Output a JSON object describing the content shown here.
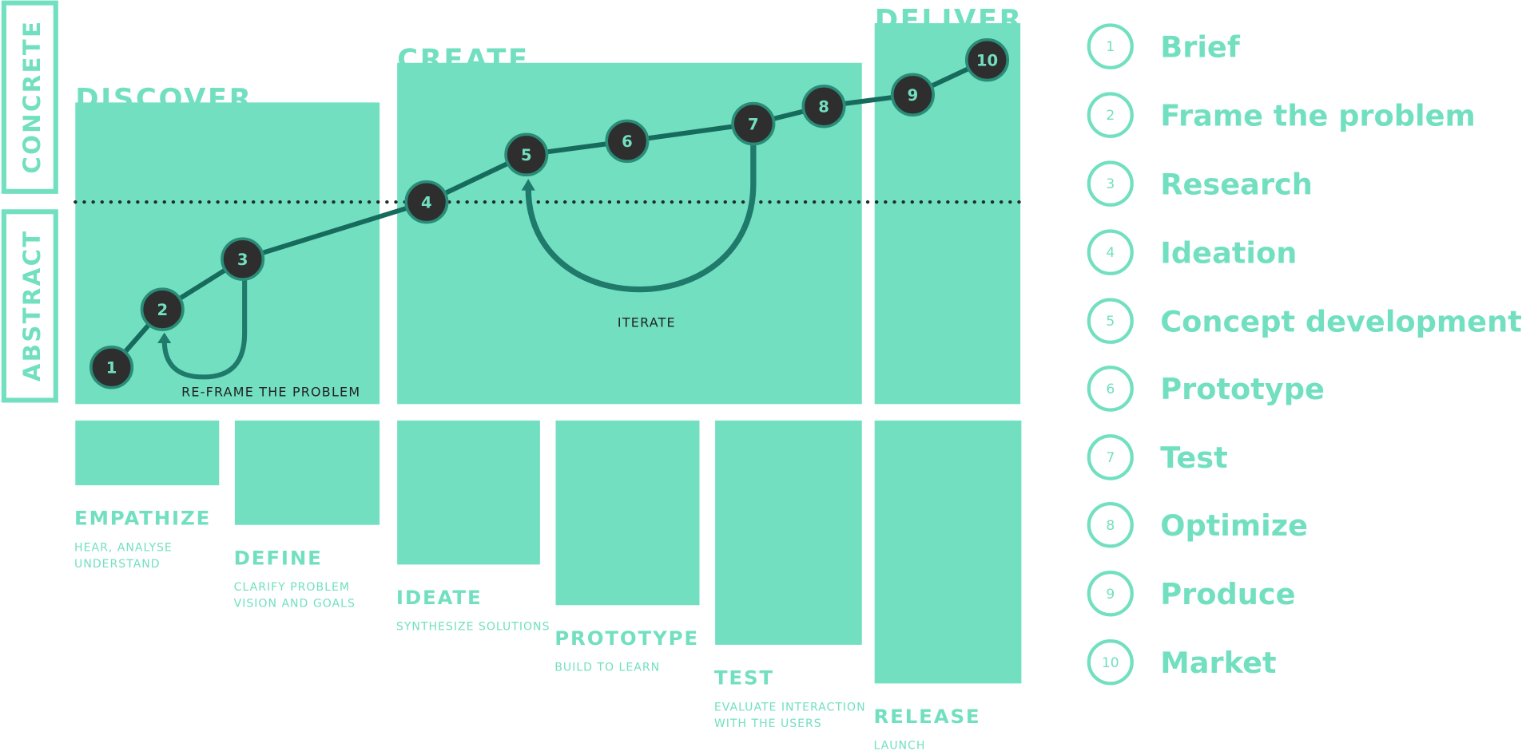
{
  "axis_labels": {
    "concrete": "CONCRETE",
    "abstract": "ABSTRACT"
  },
  "phases": [
    {
      "title": "DISCOVER"
    },
    {
      "title": "CREATE"
    },
    {
      "title": "DELIVER"
    }
  ],
  "nodes": [
    {
      "label": "1"
    },
    {
      "label": "2"
    },
    {
      "label": "3"
    },
    {
      "label": "4"
    },
    {
      "label": "5"
    },
    {
      "label": "6"
    },
    {
      "label": "7"
    },
    {
      "label": "8"
    },
    {
      "label": "9"
    },
    {
      "label": "10"
    }
  ],
  "annotations": {
    "reframe": "RE-FRAME THE PROBLEM",
    "iterate": "ITERATE"
  },
  "stages": [
    {
      "title": "EMPATHIZE",
      "lines": [
        "HEAR, ANALYSE",
        "UNDERSTAND"
      ]
    },
    {
      "title": "DEFINE",
      "lines": [
        "CLARIFY PROBLEM",
        "VISION AND GOALS"
      ]
    },
    {
      "title": "IDEATE",
      "lines": [
        "SYNTHESIZE SOLUTIONS"
      ]
    },
    {
      "title": "PROTOTYPE",
      "lines": [
        "BUILD TO LEARN"
      ]
    },
    {
      "title": "TEST",
      "lines": [
        "EVALUATE INTERACTION",
        "WITH THE USERS"
      ]
    },
    {
      "title": "RELEASE",
      "lines": [
        "LAUNCH"
      ]
    }
  ],
  "legend": [
    {
      "number": "1",
      "label": "Brief"
    },
    {
      "number": "2",
      "label": "Frame the problem"
    },
    {
      "number": "3",
      "label": "Research"
    },
    {
      "number": "4",
      "label": "Ideation"
    },
    {
      "number": "5",
      "label": "Concept development"
    },
    {
      "number": "6",
      "label": "Prototype"
    },
    {
      "number": "7",
      "label": "Test"
    },
    {
      "number": "8",
      "label": "Optimize"
    },
    {
      "number": "9",
      "label": "Produce"
    },
    {
      "number": "10",
      "label": "Market"
    }
  ]
}
